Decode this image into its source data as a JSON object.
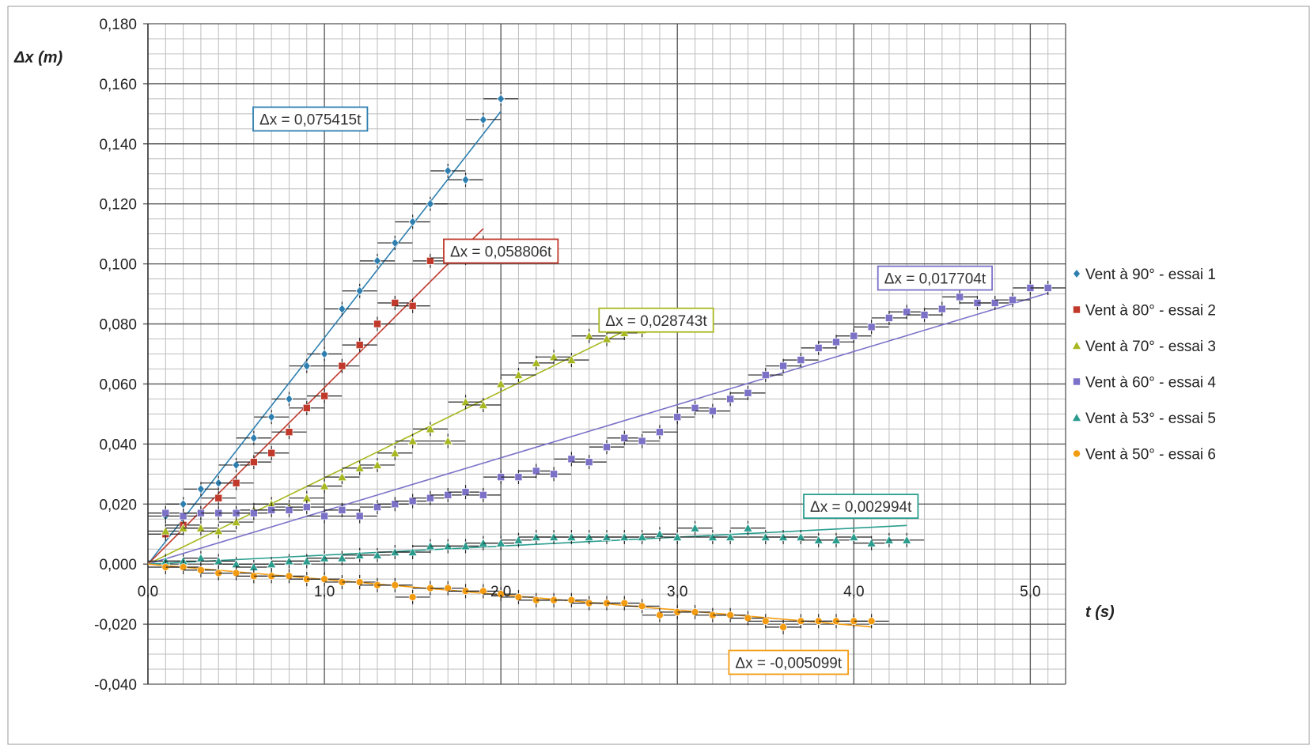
{
  "chart_data": {
    "type": "scatter",
    "xlabel": "t (s)",
    "ylabel": "Δx (m)",
    "xlim": [
      0,
      5.2
    ],
    "ylim": [
      -0.04,
      0.18
    ],
    "x_ticks": [
      "0,0",
      "1,0",
      "2,0",
      "3,0",
      "4,0",
      "5,0"
    ],
    "y_ticks": [
      "0,180",
      "0,160",
      "0,140",
      "0,120",
      "0,100",
      "0,080",
      "0,060",
      "0,040",
      "0,020",
      "0,000",
      "-0,020",
      "-0,040"
    ],
    "grid": true,
    "legend_position": "right",
    "series": [
      {
        "name": "Vent à 90° - essai 1",
        "color": "#2e7fb0",
        "marker": "diamond",
        "slope": 0.075415,
        "fit_label": "Δx = 0,075415t",
        "x": [
          0.1,
          0.2,
          0.3,
          0.4,
          0.5,
          0.6,
          0.7,
          0.8,
          0.9,
          1.0,
          1.1,
          1.2,
          1.3,
          1.4,
          1.5,
          1.6,
          1.7,
          1.8,
          1.9,
          2.0
        ],
        "y": [
          0.016,
          0.02,
          0.025,
          0.027,
          0.033,
          0.042,
          0.049,
          0.055,
          0.066,
          0.07,
          0.085,
          0.091,
          0.101,
          0.107,
          0.114,
          0.12,
          0.131,
          0.128,
          0.148,
          0.155
        ]
      },
      {
        "name": "Vent à 80° - essai 2",
        "color": "#c0392b",
        "marker": "square",
        "slope": 0.058806,
        "fit_label": "Δx = 0,058806t",
        "x": [
          0.1,
          0.2,
          0.3,
          0.4,
          0.5,
          0.6,
          0.7,
          0.8,
          0.9,
          1.0,
          1.1,
          1.2,
          1.3,
          1.4,
          1.5,
          1.6,
          1.7,
          1.8,
          1.9
        ],
        "y": [
          0.01,
          0.013,
          0.017,
          0.022,
          0.027,
          0.034,
          0.037,
          0.044,
          0.052,
          0.056,
          0.066,
          0.073,
          0.08,
          0.087,
          0.086,
          0.101,
          0.102,
          0.102,
          0.107
        ]
      },
      {
        "name": "Vent à 70° - essai 3",
        "color": "#a8b820",
        "marker": "triangle",
        "slope": 0.028743,
        "fit_label": "Δx = 0,028743t",
        "x": [
          0.1,
          0.2,
          0.3,
          0.4,
          0.5,
          0.6,
          0.7,
          0.8,
          0.9,
          1.0,
          1.1,
          1.2,
          1.3,
          1.4,
          1.5,
          1.6,
          1.7,
          1.8,
          1.9,
          2.0,
          2.1,
          2.2,
          2.3,
          2.4,
          2.5,
          2.6,
          2.7,
          2.8
        ],
        "y": [
          0.011,
          0.012,
          0.012,
          0.011,
          0.014,
          0.018,
          0.02,
          0.019,
          0.022,
          0.026,
          0.029,
          0.032,
          0.033,
          0.037,
          0.041,
          0.045,
          0.041,
          0.054,
          0.053,
          0.06,
          0.063,
          0.067,
          0.069,
          0.068,
          0.076,
          0.075,
          0.077,
          0.078
        ]
      },
      {
        "name": "Vent à 60° - essai 4",
        "color": "#7b72c8",
        "marker": "square",
        "slope": 0.017704,
        "fit_label": "Δx = 0,017704t",
        "x": [
          0.1,
          0.2,
          0.3,
          0.4,
          0.5,
          0.6,
          0.7,
          0.8,
          0.9,
          1.0,
          1.1,
          1.2,
          1.3,
          1.4,
          1.5,
          1.6,
          1.7,
          1.8,
          1.9,
          2.0,
          2.1,
          2.2,
          2.3,
          2.4,
          2.5,
          2.6,
          2.7,
          2.8,
          2.9,
          3.0,
          3.1,
          3.2,
          3.3,
          3.4,
          3.5,
          3.6,
          3.7,
          3.8,
          3.9,
          4.0,
          4.1,
          4.2,
          4.3,
          4.4,
          4.5,
          4.6,
          4.7,
          4.8,
          4.9,
          5.0,
          5.1
        ],
        "y": [
          0.017,
          0.016,
          0.017,
          0.017,
          0.017,
          0.017,
          0.018,
          0.018,
          0.019,
          0.016,
          0.018,
          0.016,
          0.019,
          0.02,
          0.021,
          0.022,
          0.023,
          0.024,
          0.023,
          0.029,
          0.029,
          0.031,
          0.03,
          0.035,
          0.034,
          0.039,
          0.042,
          0.041,
          0.044,
          0.049,
          0.052,
          0.051,
          0.055,
          0.057,
          0.063,
          0.066,
          0.068,
          0.072,
          0.074,
          0.076,
          0.079,
          0.082,
          0.084,
          0.083,
          0.085,
          0.089,
          0.087,
          0.087,
          0.088,
          0.092,
          0.092
        ]
      },
      {
        "name": "Vent à 53° - essai 5",
        "color": "#2a9d8f",
        "marker": "triangle",
        "slope": 0.002994,
        "fit_label": "Δx = 0,002994t",
        "x": [
          0.1,
          0.2,
          0.3,
          0.4,
          0.5,
          0.6,
          0.7,
          0.8,
          0.9,
          1.0,
          1.1,
          1.2,
          1.3,
          1.4,
          1.5,
          1.6,
          1.7,
          1.8,
          1.9,
          2.0,
          2.1,
          2.2,
          2.3,
          2.4,
          2.5,
          2.6,
          2.7,
          2.8,
          2.9,
          3.0,
          3.1,
          3.2,
          3.3,
          3.4,
          3.5,
          3.6,
          3.7,
          3.8,
          3.9,
          4.0,
          4.1,
          4.2,
          4.3
        ],
        "y": [
          0.001,
          0.001,
          0.002,
          0.001,
          0.0,
          -0.001,
          0.0,
          0.001,
          0.001,
          0.002,
          0.002,
          0.003,
          0.003,
          0.004,
          0.004,
          0.006,
          0.006,
          0.006,
          0.007,
          0.007,
          0.008,
          0.009,
          0.009,
          0.009,
          0.009,
          0.009,
          0.009,
          0.009,
          0.01,
          0.009,
          0.012,
          0.009,
          0.009,
          0.012,
          0.009,
          0.009,
          0.009,
          0.008,
          0.008,
          0.009,
          0.007,
          0.008,
          0.008
        ]
      },
      {
        "name": "Vent à 50° - essai 6",
        "color": "#f39c12",
        "marker": "circle",
        "slope": -0.005099,
        "fit_label": "Δx = -0,005099t",
        "x": [
          0.1,
          0.2,
          0.3,
          0.4,
          0.5,
          0.6,
          0.7,
          0.8,
          0.9,
          1.0,
          1.1,
          1.2,
          1.3,
          1.4,
          1.5,
          1.6,
          1.7,
          1.8,
          1.9,
          2.0,
          2.1,
          2.2,
          2.3,
          2.4,
          2.5,
          2.6,
          2.7,
          2.8,
          2.9,
          3.0,
          3.1,
          3.2,
          3.3,
          3.4,
          3.5,
          3.6,
          3.7,
          3.8,
          3.9,
          4.0,
          4.1
        ],
        "y": [
          -0.001,
          -0.001,
          -0.002,
          -0.003,
          -0.003,
          -0.004,
          -0.004,
          -0.004,
          -0.005,
          -0.005,
          -0.006,
          -0.006,
          -0.007,
          -0.007,
          -0.011,
          -0.008,
          -0.008,
          -0.009,
          -0.009,
          -0.01,
          -0.011,
          -0.012,
          -0.012,
          -0.012,
          -0.013,
          -0.013,
          -0.013,
          -0.014,
          -0.017,
          -0.016,
          -0.016,
          -0.017,
          -0.017,
          -0.018,
          -0.019,
          -0.021,
          -0.019,
          -0.019,
          -0.019,
          -0.019,
          -0.019
        ]
      }
    ]
  }
}
